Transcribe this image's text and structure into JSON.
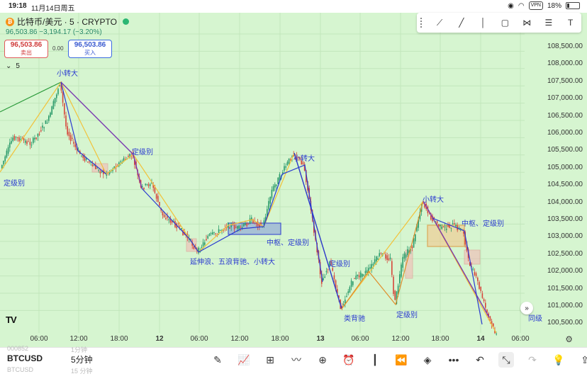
{
  "status_bar": {
    "time": "19:18",
    "date": "11月14日周五",
    "vpn": "VPN",
    "battery": "18%"
  },
  "symbol": {
    "coin": "₿",
    "title": "比特币/美元 · 5 · CRYPTO",
    "price": "96,503.86",
    "change": "−3,194.17 (−3.20%)"
  },
  "trade": {
    "sell_price": "96,503.86",
    "sell_label": "卖出",
    "spread": "0.00",
    "buy_price": "96,503.86",
    "buy_label": "买入"
  },
  "interval_chip": {
    "value": "5"
  },
  "price_axis": [
    "108,500.00",
    "108,000.00",
    "107,500.00",
    "107,000.00",
    "106,500.00",
    "106,000.00",
    "105,500.00",
    "105,000.00",
    "104,500.00",
    "104,000.00",
    "103,500.00",
    "103,000.00",
    "102,500.00",
    "102,000.00",
    "101,500.00",
    "101,000.00",
    "100,500.00"
  ],
  "time_axis": [
    {
      "label": "06:00",
      "bold": false
    },
    {
      "label": "12:00",
      "bold": false
    },
    {
      "label": "18:00",
      "bold": false
    },
    {
      "label": "12",
      "bold": true
    },
    {
      "label": "06:00",
      "bold": false
    },
    {
      "label": "12:00",
      "bold": false
    },
    {
      "label": "18:00",
      "bold": false
    },
    {
      "label": "13",
      "bold": true
    },
    {
      "label": "06:00",
      "bold": false
    },
    {
      "label": "12:00",
      "bold": false
    },
    {
      "label": "18:00",
      "bold": false
    },
    {
      "label": "14",
      "bold": true
    },
    {
      "label": "06:00",
      "bold": false
    }
  ],
  "annotations": [
    {
      "text": "小转大"
    },
    {
      "text": "定级别"
    },
    {
      "text": "定级别"
    },
    {
      "text": "小转大"
    },
    {
      "text": "中枢、定级别"
    },
    {
      "text": "延伸浪、五浪背驰、小转大"
    },
    {
      "text": "定级别"
    },
    {
      "text": "类背驰"
    },
    {
      "text": "定级别"
    },
    {
      "text": "小转大"
    },
    {
      "text": "中枢、定级别"
    },
    {
      "text": "同级"
    }
  ],
  "bottom": {
    "ticker": "BTCUSD",
    "ticker_ghost_top": "000852",
    "ticker_ghost_bottom": "BTCUSD",
    "interval": "5分钟",
    "interval_ghost_top": "1分钟",
    "interval_ghost_bottom": "15 分钟"
  },
  "icons": {
    "top_tools": [
      "trendline-tool-icon",
      "ray-tool-icon",
      "vertical-line-icon",
      "rectangle-tool-icon",
      "pattern-tool-icon",
      "fib-tool-icon",
      "text-tool-icon"
    ],
    "bottom_tools": [
      "brush-icon",
      "indicators-icon",
      "templates-icon",
      "drawing-tools-icon",
      "add-icon",
      "alert-clock-icon",
      "candle-style-icon",
      "replay-icon",
      "layers-icon",
      "more-icon",
      "undo-icon",
      "collapse-icon",
      "redo-icon",
      "idea-icon",
      "share-icon"
    ]
  },
  "colors": {
    "chart_bg": "#d6f5d0",
    "up": "#e0962a",
    "down": "#2a3ad0",
    "box_blue": "#9fb8d6",
    "box_orange": "#e08c2a",
    "annotation": "#2a3ad0"
  }
}
